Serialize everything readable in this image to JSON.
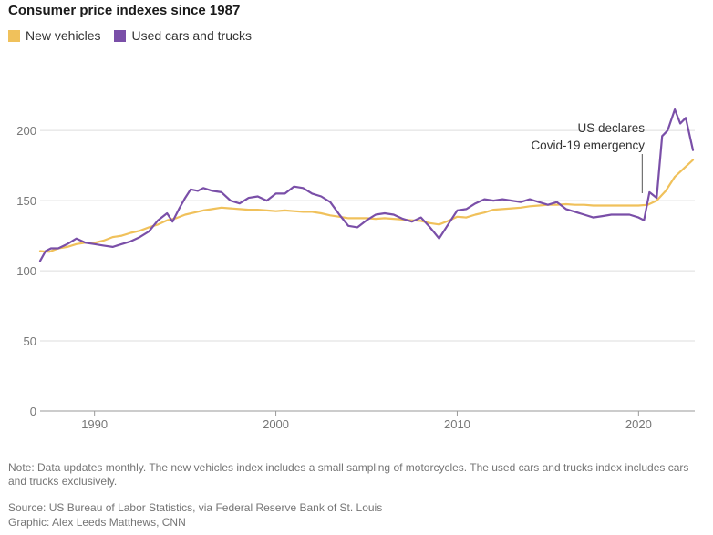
{
  "chart_data": {
    "type": "line",
    "title": "Consumer price indexes since 1987",
    "xlabel": "",
    "ylabel": "",
    "xlim": [
      1987,
      2023.1
    ],
    "ylim": [
      0,
      230
    ],
    "x_ticks": [
      1990,
      2000,
      2010,
      2020
    ],
    "x_tick_labels": [
      "1990",
      "2000",
      "2010",
      "2020"
    ],
    "y_ticks": [
      0,
      50,
      100,
      150,
      200
    ],
    "y_tick_labels": [
      "0",
      "50",
      "100",
      "150",
      "200"
    ],
    "grid": true,
    "legend_position": "top-left",
    "annotation": {
      "x": 2020.2,
      "line1": "US declares",
      "line2": "Covid-19 emergency"
    },
    "series": [
      {
        "name": "New vehicles",
        "color": "#f0c15b",
        "points": [
          [
            1987.0,
            114
          ],
          [
            1987.5,
            113.5
          ],
          [
            1988.0,
            116
          ],
          [
            1988.5,
            117
          ],
          [
            1989.0,
            119
          ],
          [
            1989.5,
            120
          ],
          [
            1990.0,
            120
          ],
          [
            1990.5,
            121.5
          ],
          [
            1991.0,
            124
          ],
          [
            1991.5,
            125
          ],
          [
            1992.0,
            127
          ],
          [
            1992.5,
            128.5
          ],
          [
            1993.0,
            131
          ],
          [
            1993.5,
            133
          ],
          [
            1994.0,
            136
          ],
          [
            1994.5,
            137.5
          ],
          [
            1995.0,
            140
          ],
          [
            1995.5,
            141.5
          ],
          [
            1996.0,
            143
          ],
          [
            1996.5,
            144
          ],
          [
            1997.0,
            145
          ],
          [
            1997.5,
            144.5
          ],
          [
            1998.0,
            144
          ],
          [
            1998.5,
            143.5
          ],
          [
            1999.0,
            143.5
          ],
          [
            1999.5,
            143
          ],
          [
            2000.0,
            142.5
          ],
          [
            2000.5,
            143
          ],
          [
            2001.0,
            142.5
          ],
          [
            2001.5,
            142
          ],
          [
            2002.0,
            142
          ],
          [
            2002.5,
            141
          ],
          [
            2003.0,
            139.5
          ],
          [
            2003.5,
            138.5
          ],
          [
            2004.0,
            137.5
          ],
          [
            2004.5,
            137.5
          ],
          [
            2005.0,
            137.5
          ],
          [
            2005.5,
            137
          ],
          [
            2006.0,
            137.5
          ],
          [
            2006.5,
            137
          ],
          [
            2007.0,
            136.5
          ],
          [
            2007.5,
            136
          ],
          [
            2008.0,
            135.5
          ],
          [
            2008.5,
            134
          ],
          [
            2009.0,
            133
          ],
          [
            2009.5,
            135.5
          ],
          [
            2010.0,
            138.5
          ],
          [
            2010.5,
            138
          ],
          [
            2011.0,
            140
          ],
          [
            2011.5,
            141.5
          ],
          [
            2012.0,
            143.5
          ],
          [
            2012.5,
            144
          ],
          [
            2013.0,
            144.5
          ],
          [
            2013.5,
            145
          ],
          [
            2014.0,
            146
          ],
          [
            2014.5,
            146.5
          ],
          [
            2015.0,
            147
          ],
          [
            2015.5,
            147
          ],
          [
            2016.0,
            147.5
          ],
          [
            2016.5,
            147
          ],
          [
            2017.0,
            147
          ],
          [
            2017.5,
            146.5
          ],
          [
            2018.0,
            146.5
          ],
          [
            2018.5,
            146.5
          ],
          [
            2019.0,
            146.5
          ],
          [
            2019.5,
            146.5
          ],
          [
            2020.0,
            146.5
          ],
          [
            2020.5,
            147
          ],
          [
            2021.0,
            150
          ],
          [
            2021.5,
            157
          ],
          [
            2022.0,
            167
          ],
          [
            2022.5,
            173
          ],
          [
            2023.0,
            179
          ]
        ]
      },
      {
        "name": "Used cars and trucks",
        "color": "#7a4fa8",
        "points": [
          [
            1987.0,
            107
          ],
          [
            1987.3,
            114
          ],
          [
            1987.6,
            116
          ],
          [
            1988.0,
            116
          ],
          [
            1988.5,
            119
          ],
          [
            1989.0,
            123
          ],
          [
            1989.5,
            120
          ],
          [
            1990.0,
            119
          ],
          [
            1990.5,
            118
          ],
          [
            1991.0,
            117
          ],
          [
            1991.5,
            119
          ],
          [
            1992.0,
            121
          ],
          [
            1992.5,
            124
          ],
          [
            1993.0,
            128
          ],
          [
            1993.5,
            136
          ],
          [
            1994.0,
            141
          ],
          [
            1994.3,
            135
          ],
          [
            1994.7,
            145
          ],
          [
            1995.0,
            152
          ],
          [
            1995.3,
            158
          ],
          [
            1995.7,
            157
          ],
          [
            1996.0,
            159
          ],
          [
            1996.5,
            157
          ],
          [
            1997.0,
            156
          ],
          [
            1997.5,
            150
          ],
          [
            1998.0,
            148
          ],
          [
            1998.5,
            152
          ],
          [
            1999.0,
            153
          ],
          [
            1999.5,
            150
          ],
          [
            2000.0,
            155
          ],
          [
            2000.5,
            155
          ],
          [
            2001.0,
            160
          ],
          [
            2001.5,
            159
          ],
          [
            2002.0,
            155
          ],
          [
            2002.5,
            153
          ],
          [
            2003.0,
            149
          ],
          [
            2003.5,
            140
          ],
          [
            2004.0,
            132
          ],
          [
            2004.5,
            131
          ],
          [
            2005.0,
            136
          ],
          [
            2005.5,
            140
          ],
          [
            2006.0,
            141
          ],
          [
            2006.5,
            140
          ],
          [
            2007.0,
            137
          ],
          [
            2007.5,
            135
          ],
          [
            2008.0,
            138
          ],
          [
            2008.5,
            131
          ],
          [
            2009.0,
            123
          ],
          [
            2009.5,
            133
          ],
          [
            2010.0,
            143
          ],
          [
            2010.5,
            144
          ],
          [
            2011.0,
            148
          ],
          [
            2011.5,
            151
          ],
          [
            2012.0,
            150
          ],
          [
            2012.5,
            151
          ],
          [
            2013.0,
            150
          ],
          [
            2013.5,
            149
          ],
          [
            2014.0,
            151
          ],
          [
            2014.5,
            149
          ],
          [
            2015.0,
            147
          ],
          [
            2015.5,
            149
          ],
          [
            2016.0,
            144
          ],
          [
            2016.5,
            142
          ],
          [
            2017.0,
            140
          ],
          [
            2017.5,
            138
          ],
          [
            2018.0,
            139
          ],
          [
            2018.5,
            140
          ],
          [
            2019.0,
            140
          ],
          [
            2019.5,
            140
          ],
          [
            2020.0,
            138
          ],
          [
            2020.3,
            136
          ],
          [
            2020.6,
            156
          ],
          [
            2021.0,
            152
          ],
          [
            2021.3,
            196
          ],
          [
            2021.6,
            200
          ],
          [
            2022.0,
            215
          ],
          [
            2022.3,
            205
          ],
          [
            2022.6,
            209
          ],
          [
            2023.0,
            186
          ]
        ]
      }
    ]
  },
  "note": "Note: Data updates monthly. The new vehicles index includes a small sampling of motorcycles. The used cars and trucks index includes cars and trucks exclusively.",
  "source": "Source: US Bureau of Labor Statistics, via Federal Reserve Bank of St. Louis",
  "credit": "Graphic: Alex Leeds Matthews, CNN"
}
